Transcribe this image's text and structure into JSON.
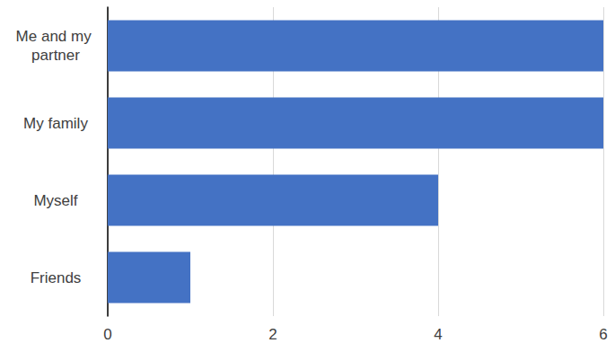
{
  "chart_data": {
    "type": "bar",
    "orientation": "horizontal",
    "categories": [
      "Me and my partner",
      "My family",
      "Myself",
      "Friends"
    ],
    "values": [
      6,
      6,
      4,
      1
    ],
    "color": "#4472c4",
    "xlim": [
      0,
      6
    ],
    "xticks": [
      0,
      2,
      4,
      6
    ],
    "grid": true
  }
}
